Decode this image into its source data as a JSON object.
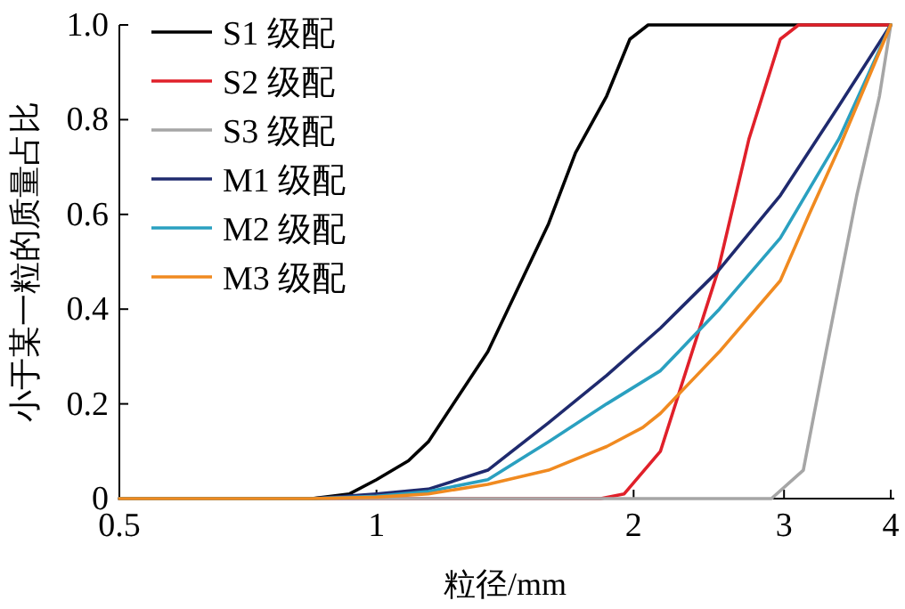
{
  "chart_data": {
    "type": "line",
    "xlabel": "粒径/mm",
    "ylabel": "小于某一粒的质量占比",
    "log": "x",
    "xlim": [
      0.5,
      4
    ],
    "xticks": [
      0.5,
      1,
      2,
      3,
      4
    ],
    "ylim": [
      0,
      1
    ],
    "yticks": [
      0,
      0.2,
      0.4,
      0.6,
      0.8,
      {
        "value": 1,
        "label": "1.0"
      }
    ],
    "legend": "top left",
    "marker": "none",
    "line_style": "solid",
    "series": [
      {
        "name": "S1 级配",
        "color": "#000000",
        "x": [
          0.5,
          0.84,
          0.93,
          1.0,
          1.09,
          1.15,
          1.35,
          1.59,
          1.71,
          1.86,
          1.98,
          2.08,
          4
        ],
        "values": [
          0,
          0,
          0.01,
          0.04,
          0.08,
          0.12,
          0.31,
          0.58,
          0.73,
          0.85,
          0.97,
          1,
          1
        ]
      },
      {
        "name": "S2 级配",
        "color": "#e0202a",
        "x": [
          0.5,
          1.83,
          1.95,
          2.15,
          2.51,
          2.73,
          2.97,
          3.12,
          4
        ],
        "values": [
          0,
          0,
          0.01,
          0.1,
          0.48,
          0.76,
          0.97,
          1,
          1
        ]
      },
      {
        "name": "S3 级配",
        "color": "#a6a6a6",
        "x": [
          0.5,
          2.9,
          3.16,
          3.36,
          3.65,
          3.88,
          4
        ],
        "values": [
          0,
          0,
          0.06,
          0.31,
          0.64,
          0.85,
          1
        ]
      },
      {
        "name": "M1 级配",
        "color": "#1f2a6e",
        "x": [
          0.5,
          0.84,
          1.0,
          1.15,
          1.35,
          1.59,
          1.86,
          2.15,
          2.51,
          2.97,
          3.48,
          4
        ],
        "values": [
          0,
          0,
          0.01,
          0.02,
          0.06,
          0.16,
          0.26,
          0.36,
          0.48,
          0.64,
          0.83,
          1
        ]
      },
      {
        "name": "M2 级配",
        "color": "#2aa0c0",
        "x": [
          0.5,
          0.84,
          1.0,
          1.15,
          1.35,
          1.59,
          1.86,
          2.15,
          2.52,
          2.97,
          3.48,
          4
        ],
        "values": [
          0,
          0,
          0.005,
          0.015,
          0.04,
          0.12,
          0.2,
          0.27,
          0.4,
          0.55,
          0.76,
          1
        ]
      },
      {
        "name": "M3 级配",
        "color": "#f08a20",
        "x": [
          0.5,
          0.84,
          1.0,
          1.15,
          1.35,
          1.59,
          1.86,
          2.05,
          2.15,
          2.52,
          2.97,
          3.21,
          3.48,
          4
        ],
        "values": [
          0,
          0,
          0.003,
          0.01,
          0.03,
          0.06,
          0.11,
          0.15,
          0.18,
          0.31,
          0.46,
          0.6,
          0.74,
          1
        ]
      }
    ]
  }
}
